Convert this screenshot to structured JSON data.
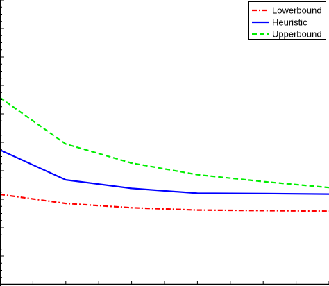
{
  "chart_data": {
    "type": "line",
    "title": "",
    "xlabel": "",
    "ylabel": "",
    "x": [
      1,
      2,
      3,
      4,
      5,
      6
    ],
    "xlim": [
      1,
      6
    ],
    "ylim": [
      0,
      10
    ],
    "grid": false,
    "legend_position": "top-right",
    "series": [
      {
        "name": "Lowerbound",
        "color": "#ff0000",
        "style": "dash-dot",
        "values": [
          3.17,
          2.85,
          2.7,
          2.62,
          2.6,
          2.58
        ]
      },
      {
        "name": "Heuristic",
        "color": "#0000ff",
        "style": "solid",
        "values": [
          4.73,
          3.68,
          3.38,
          3.21,
          3.2,
          3.18
        ]
      },
      {
        "name": "Upperbound",
        "color": "#00ee00",
        "style": "dashed",
        "values": [
          6.57,
          4.94,
          4.27,
          3.86,
          3.62,
          3.41
        ]
      }
    ]
  }
}
